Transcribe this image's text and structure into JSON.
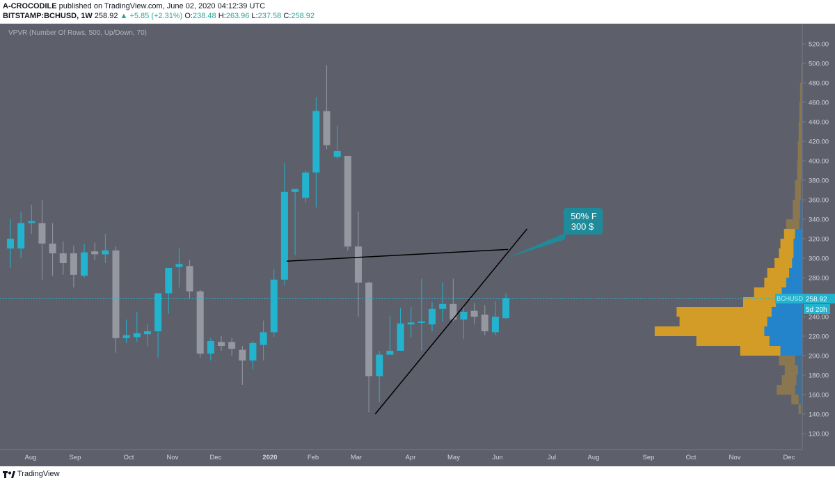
{
  "header": {
    "author": "A-CROCODILE",
    "published": "published on TradingView.com, June 02, 2020 04:12:39 UTC",
    "symbol": "BITSTAMP:BCHUSD, 1W",
    "last": "258.92",
    "change": "▲ +5.85 (+2.31%)",
    "o_label": "O:",
    "o": "238.48",
    "h_label": "H:",
    "h": "263.96",
    "l_label": "L:",
    "l": "237.58",
    "c_label": "C:",
    "c": "258.92"
  },
  "indicator_label": "VPVR (Number Of Rows, 500, Up/Down, 70)",
  "price_tag": {
    "symbol": "BCHUSD",
    "value": "258.92",
    "countdown": "5d 20h"
  },
  "annotation": {
    "line1": "50% F",
    "line2": "300 $"
  },
  "footer": {
    "brand": "TradingView"
  },
  "colors": {
    "bg": "#5d606b",
    "up": "#22b3cf",
    "down": "#9598a1",
    "vol_up": "#1e88d6",
    "vol_down": "#e0a31f"
  },
  "chart_data": {
    "type": "candlestick",
    "title": "BITSTAMP:BCHUSD, 1W",
    "ylim": [
      110,
      545
    ],
    "y_ticks": [
      120,
      140,
      160,
      180,
      200,
      220,
      240,
      260,
      280,
      300,
      320,
      340,
      360,
      380,
      400,
      420,
      440,
      460,
      480,
      500,
      520,
      540
    ],
    "x_labels": [
      "Aug",
      "Sep",
      "Oct",
      "Nov",
      "Dec",
      "2020",
      "Feb",
      "Mar",
      "Apr",
      "May",
      "Jun",
      "Jul",
      "Aug",
      "Sep",
      "Oct",
      "Nov",
      "Dec"
    ],
    "candles": [
      {
        "o": 310,
        "h": 340,
        "l": 290,
        "c": 320
      },
      {
        "o": 310,
        "h": 348,
        "l": 300,
        "c": 336
      },
      {
        "o": 336,
        "h": 355,
        "l": 325,
        "c": 338
      },
      {
        "o": 336,
        "h": 360,
        "l": 278,
        "c": 315
      },
      {
        "o": 315,
        "h": 336,
        "l": 282,
        "c": 305
      },
      {
        "o": 305,
        "h": 317,
        "l": 283,
        "c": 295
      },
      {
        "o": 305,
        "h": 313,
        "l": 270,
        "c": 283
      },
      {
        "o": 282,
        "h": 315,
        "l": 280,
        "c": 306
      },
      {
        "o": 307,
        "h": 316,
        "l": 298,
        "c": 304
      },
      {
        "o": 304,
        "h": 325,
        "l": 295,
        "c": 308
      },
      {
        "o": 308,
        "h": 312,
        "l": 203,
        "c": 218
      },
      {
        "o": 218,
        "h": 237,
        "l": 213,
        "c": 221
      },
      {
        "o": 219,
        "h": 245,
        "l": 214,
        "c": 223
      },
      {
        "o": 222,
        "h": 232,
        "l": 210,
        "c": 225
      },
      {
        "o": 225,
        "h": 264,
        "l": 198,
        "c": 264
      },
      {
        "o": 264,
        "h": 290,
        "l": 243,
        "c": 290
      },
      {
        "o": 291,
        "h": 310,
        "l": 270,
        "c": 294
      },
      {
        "o": 292,
        "h": 298,
        "l": 258,
        "c": 266
      },
      {
        "o": 266,
        "h": 268,
        "l": 198,
        "c": 202
      },
      {
        "o": 202,
        "h": 218,
        "l": 195,
        "c": 215
      },
      {
        "o": 214,
        "h": 220,
        "l": 205,
        "c": 210
      },
      {
        "o": 214,
        "h": 218,
        "l": 200,
        "c": 207
      },
      {
        "o": 206,
        "h": 210,
        "l": 170,
        "c": 195
      },
      {
        "o": 195,
        "h": 215,
        "l": 186,
        "c": 213
      },
      {
        "o": 211,
        "h": 236,
        "l": 195,
        "c": 224
      },
      {
        "o": 224,
        "h": 289,
        "l": 219,
        "c": 278
      },
      {
        "o": 278,
        "h": 398,
        "l": 272,
        "c": 368
      },
      {
        "o": 368,
        "h": 371,
        "l": 303,
        "c": 371
      },
      {
        "o": 362,
        "h": 390,
        "l": 357,
        "c": 388
      },
      {
        "o": 388,
        "h": 465,
        "l": 352,
        "c": 451
      },
      {
        "o": 451,
        "h": 498,
        "l": 412,
        "c": 416
      },
      {
        "o": 404,
        "h": 436,
        "l": 402,
        "c": 410
      },
      {
        "o": 405,
        "h": 404,
        "l": 308,
        "c": 312
      },
      {
        "o": 312,
        "h": 348,
        "l": 240,
        "c": 275
      },
      {
        "o": 275,
        "h": 276,
        "l": 142,
        "c": 179
      },
      {
        "o": 179,
        "h": 205,
        "l": 152,
        "c": 201
      },
      {
        "o": 201,
        "h": 241,
        "l": 201,
        "c": 205
      },
      {
        "o": 205,
        "h": 249,
        "l": 206,
        "c": 233
      },
      {
        "o": 232,
        "h": 250,
        "l": 219,
        "c": 234
      },
      {
        "o": 234,
        "h": 279,
        "l": 205,
        "c": 235
      },
      {
        "o": 232,
        "h": 255,
        "l": 225,
        "c": 248
      },
      {
        "o": 248,
        "h": 275,
        "l": 235,
        "c": 253
      },
      {
        "o": 253,
        "h": 279,
        "l": 235,
        "c": 237
      },
      {
        "o": 237,
        "h": 251,
        "l": 217,
        "c": 245
      },
      {
        "o": 246,
        "h": 254,
        "l": 232,
        "c": 240
      },
      {
        "o": 242,
        "h": 252,
        "l": 221,
        "c": 225
      },
      {
        "o": 224,
        "h": 256,
        "l": 221,
        "c": 240
      },
      {
        "o": 238.48,
        "h": 263.96,
        "l": 237.58,
        "c": 258.92
      }
    ],
    "volume_profile": {
      "price_bins": [
        140,
        150,
        160,
        170,
        180,
        190,
        200,
        210,
        220,
        230,
        240,
        250,
        260,
        270,
        280,
        290,
        300,
        310,
        320,
        330,
        340,
        360,
        380,
        400,
        420,
        440,
        460,
        480
      ],
      "up": [
        2,
        5,
        10,
        8,
        6,
        10,
        30,
        45,
        52,
        48,
        42,
        36,
        28,
        22,
        18,
        14,
        12,
        12,
        10,
        4,
        3,
        2,
        1,
        1,
        1,
        1,
        1,
        0
      ],
      "down": [
        3,
        10,
        25,
        20,
        18,
        22,
        55,
        100,
        150,
        120,
        130,
        45,
        38,
        30,
        30,
        24,
        20,
        18,
        15,
        18,
        10,
        8,
        6,
        5,
        4,
        3,
        2,
        1
      ]
    },
    "current_price": 258.92,
    "drawings": [
      {
        "type": "trendline",
        "from": {
          "x_index": 26.2,
          "y": 297
        },
        "to": {
          "x_index": 47.2,
          "y": 309
        }
      },
      {
        "type": "trendline",
        "from": {
          "x_index": 34.6,
          "y": 140
        },
        "to": {
          "x_index": 49.0,
          "y": 330
        }
      }
    ]
  }
}
